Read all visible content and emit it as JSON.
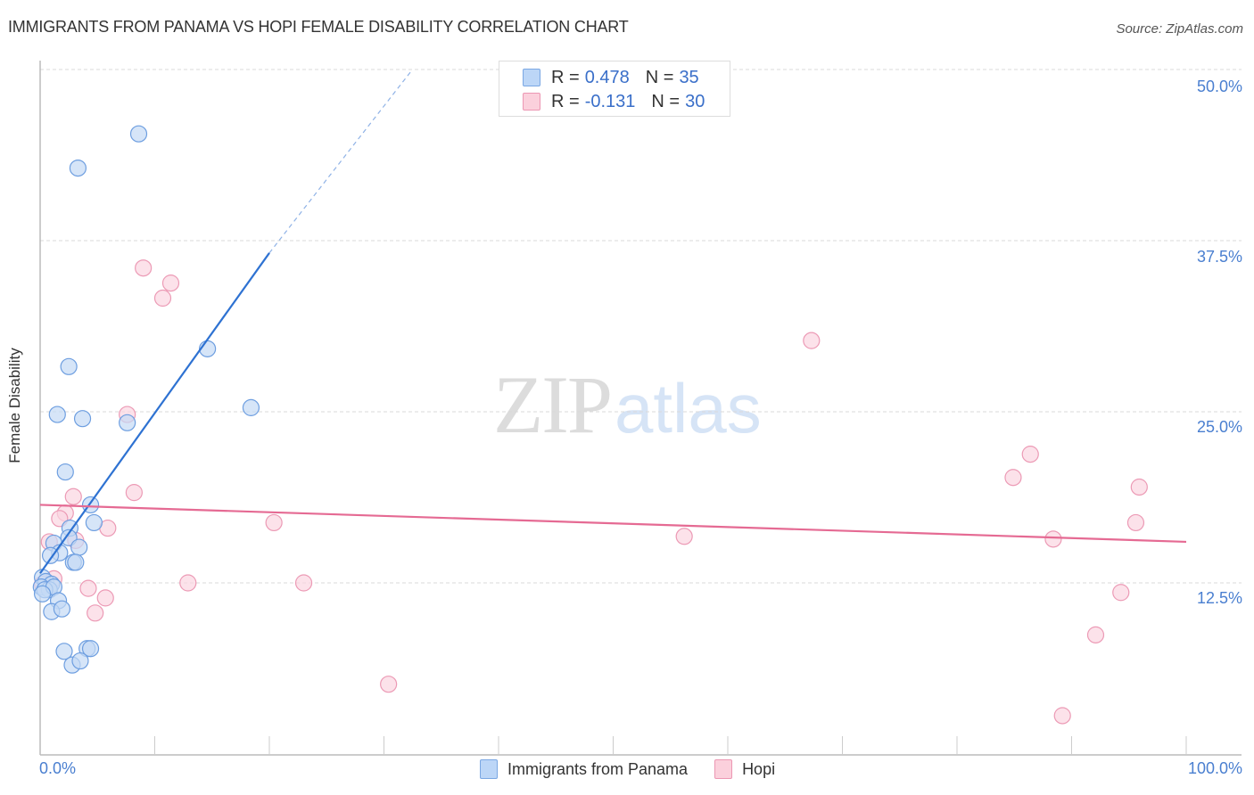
{
  "title": "IMMIGRANTS FROM PANAMA VS HOPI FEMALE DISABILITY CORRELATION CHART",
  "source": "Source: ZipAtlas.com",
  "watermark": {
    "zip": "ZIP",
    "atlas": "atlas"
  },
  "axes": {
    "ylabel": "Female Disability",
    "yticks": [
      "50.0%",
      "37.5%",
      "25.0%",
      "12.5%"
    ],
    "xticks": {
      "left": "0.0%",
      "right": "100.0%"
    }
  },
  "legend_top": {
    "rows": [
      {
        "series": "Immigrants from Panama",
        "r_label": "R =",
        "r_value": "0.478",
        "n_label": "N =",
        "n_value": "35",
        "color": "#a9c8f0"
      },
      {
        "series": "Hopi",
        "r_label": "R =",
        "r_value": "-0.131",
        "n_label": "N =",
        "n_value": "30",
        "color": "#f6bcd0"
      }
    ]
  },
  "legend_bottom": {
    "items": [
      {
        "label": "Immigrants from Panama",
        "fill": "#bcd6f7",
        "stroke": "#7aa7e3"
      },
      {
        "label": "Hopi",
        "fill": "#fbd0dc",
        "stroke": "#ec97b3"
      }
    ]
  },
  "colors": {
    "blue_fill": "#c5daf5",
    "blue_stroke": "#6d9ee0",
    "blue_line": "#2e72d2",
    "pink_fill": "#fbd5e1",
    "pink_stroke": "#ec9ab5",
    "pink_line": "#e56a93",
    "tick_text": "#4a7fd0",
    "grid": "#d9d9d9"
  },
  "chart_data": {
    "type": "scatter",
    "title": "IMMIGRANTS FROM PANAMA VS HOPI FEMALE DISABILITY CORRELATION CHART",
    "xlabel": "",
    "ylabel": "Female Disability",
    "xlim": [
      0,
      100
    ],
    "ylim": [
      0,
      52
    ],
    "yticks": [
      12.5,
      25.0,
      37.5,
      50.0
    ],
    "xtick_labels": [
      "0.0%",
      "100.0%"
    ],
    "grid": "horizontal dashed",
    "legend_position": "top-center and bottom",
    "series": [
      {
        "name": "Immigrants from Panama",
        "R": 0.478,
        "N": 35,
        "trend": {
          "x0": 0,
          "y0": 13.2,
          "x1": 20,
          "y1": 36.6,
          "extended_dashed_to": {
            "x": 32.3,
            "y": 49.8
          }
        },
        "points": [
          [
            8.6,
            45.3
          ],
          [
            3.3,
            42.8
          ],
          [
            2.5,
            28.3
          ],
          [
            14.6,
            29.6
          ],
          [
            18.4,
            25.3
          ],
          [
            1.5,
            24.8
          ],
          [
            3.7,
            24.5
          ],
          [
            7.6,
            24.2
          ],
          [
            2.2,
            20.6
          ],
          [
            4.4,
            18.2
          ],
          [
            4.7,
            16.9
          ],
          [
            2.6,
            16.5
          ],
          [
            2.5,
            15.8
          ],
          [
            1.2,
            15.4
          ],
          [
            3.4,
            15.1
          ],
          [
            1.7,
            14.7
          ],
          [
            0.9,
            14.5
          ],
          [
            2.9,
            14.0
          ],
          [
            3.1,
            14.0
          ],
          [
            0.2,
            12.9
          ],
          [
            0.5,
            12.6
          ],
          [
            1.0,
            12.4
          ],
          [
            0.1,
            12.2
          ],
          [
            0.8,
            12.0
          ],
          [
            0.4,
            12.0
          ],
          [
            1.2,
            12.2
          ],
          [
            0.2,
            11.7
          ],
          [
            1.6,
            11.2
          ],
          [
            1.0,
            10.4
          ],
          [
            1.9,
            10.6
          ],
          [
            2.1,
            7.5
          ],
          [
            4.1,
            7.7
          ],
          [
            4.4,
            7.7
          ],
          [
            2.8,
            6.5
          ],
          [
            3.5,
            6.8
          ]
        ]
      },
      {
        "name": "Hopi",
        "R": -0.131,
        "N": 30,
        "trend": {
          "x0": 0,
          "y0": 18.2,
          "x1": 100,
          "y1": 15.5
        },
        "points": [
          [
            9.0,
            35.5
          ],
          [
            11.4,
            34.4
          ],
          [
            10.7,
            33.3
          ],
          [
            67.3,
            30.2
          ],
          [
            7.6,
            24.8
          ],
          [
            86.4,
            21.9
          ],
          [
            84.9,
            20.2
          ],
          [
            8.2,
            19.1
          ],
          [
            95.9,
            19.5
          ],
          [
            2.9,
            18.8
          ],
          [
            2.2,
            17.6
          ],
          [
            1.7,
            17.2
          ],
          [
            95.6,
            16.9
          ],
          [
            20.4,
            16.9
          ],
          [
            5.9,
            16.5
          ],
          [
            0.8,
            15.5
          ],
          [
            3.1,
            15.6
          ],
          [
            56.2,
            15.9
          ],
          [
            88.4,
            15.7
          ],
          [
            1.2,
            12.8
          ],
          [
            12.9,
            12.5
          ],
          [
            23.0,
            12.5
          ],
          [
            4.2,
            12.1
          ],
          [
            5.7,
            11.4
          ],
          [
            94.3,
            11.8
          ],
          [
            4.8,
            10.3
          ],
          [
            92.1,
            8.7
          ],
          [
            30.4,
            5.1
          ],
          [
            89.2,
            2.8
          ],
          [
            0.2,
            12.4
          ]
        ]
      }
    ]
  }
}
